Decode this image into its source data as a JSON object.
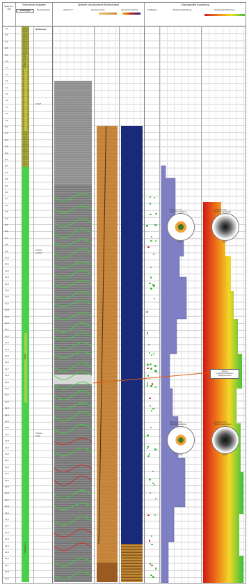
{
  "header": {
    "depth_col": "Teufe [m u. OK]",
    "section1": "Bohrmeister-Angaben",
    "sub1a": "Lithologie",
    "sub1b": "Beschreibung",
    "section2": "Optische und akustische Bohrlochwand",
    "sub2a": "Optisch 0°",
    "sub2b": "Akustisch Amp.",
    "sub2c": "Akustisch Laufzeit",
    "section3": "Ortsaufgelöste Auswertung",
    "sub3a": "Klüftigkeit",
    "sub3b": "Klüftung Schichtung",
    "sub3c": "Klüftung Schichtung 2"
  },
  "depths": [
    "6,5",
    "6,6",
    "6,7",
    "6,8",
    "6,9",
    "7,0",
    "7,1",
    "7,2",
    "7,3",
    "7,4",
    "7,5",
    "7,6",
    "7,7",
    "7,8",
    "7,9",
    "8,0",
    "8,1",
    "8,2",
    "8,3",
    "8,4",
    "8,5",
    "8,6",
    "8,7",
    "8,8",
    "8,9",
    "9,0",
    "9,1",
    "9,2",
    "9,3",
    "9,4",
    "9,5",
    "9,6",
    "9,7",
    "9,8",
    "9,9",
    "10,0",
    "10,1",
    "10,2",
    "10,3",
    "10,4",
    "10,5",
    "10,6",
    "10,7",
    "10,8",
    "10,9",
    "11,0",
    "11,1",
    "11,2",
    "11,3",
    "11,4",
    "11,5",
    "11,6",
    "11,7",
    "11,8",
    "11,9",
    "12,0",
    "12,1",
    "12,2",
    "12,3",
    "12,4",
    "12,5",
    "12,6",
    "12,7",
    "12,8",
    "12,9",
    "13,0",
    "13,1",
    "13,2",
    "13,3",
    "13,4",
    "13,5",
    "13,6",
    "13,7",
    "13,8",
    "13,9",
    "14,0",
    "14,1",
    "14,2",
    "14,3",
    "14,4",
    "14,5",
    "14,6",
    "14,7",
    "14,8",
    "14,9"
  ],
  "lithology": {
    "label1": "Mutterboden",
    "label2": "Schluff",
    "label3": "Tonstein",
    "label3b": "geklüftet",
    "label4": "Tonstein",
    "label4b": "klüftig",
    "strip_top": "Auffüllung / Quartär",
    "strip_mid": "Tonstein",
    "strip_bot": "Tonstein 11,5 m"
  },
  "annotation": {
    "line1": "Störung",
    "line2": "Tonstein/Kluft 90/45 m",
    "line3": "Klüftigkeit erhöht"
  },
  "rose1": {
    "title": "Klüftung 1. Ord.",
    "sub": "Polpunkt-Darstellung",
    "n": "N=24"
  },
  "rose2": {
    "title": "Klüftung 1. Ord.",
    "sub": "Polpunkt-Darstellung",
    "n": "N=28"
  },
  "rose3": {
    "title": "Klüftung 2. Ord.",
    "sub": "Polpunkt-Darstellung",
    "n": "N=21"
  },
  "rose4": {
    "title": "Klüftung 2. Ord.",
    "sub": "Polpunkt-Darstellung",
    "n": "N=30"
  },
  "colors": {
    "olive": "#8a8a2a",
    "green": "#4ccf4c",
    "orange": "#c98538",
    "navy": "#1a2a7a",
    "violet": "#7f7fc4"
  }
}
